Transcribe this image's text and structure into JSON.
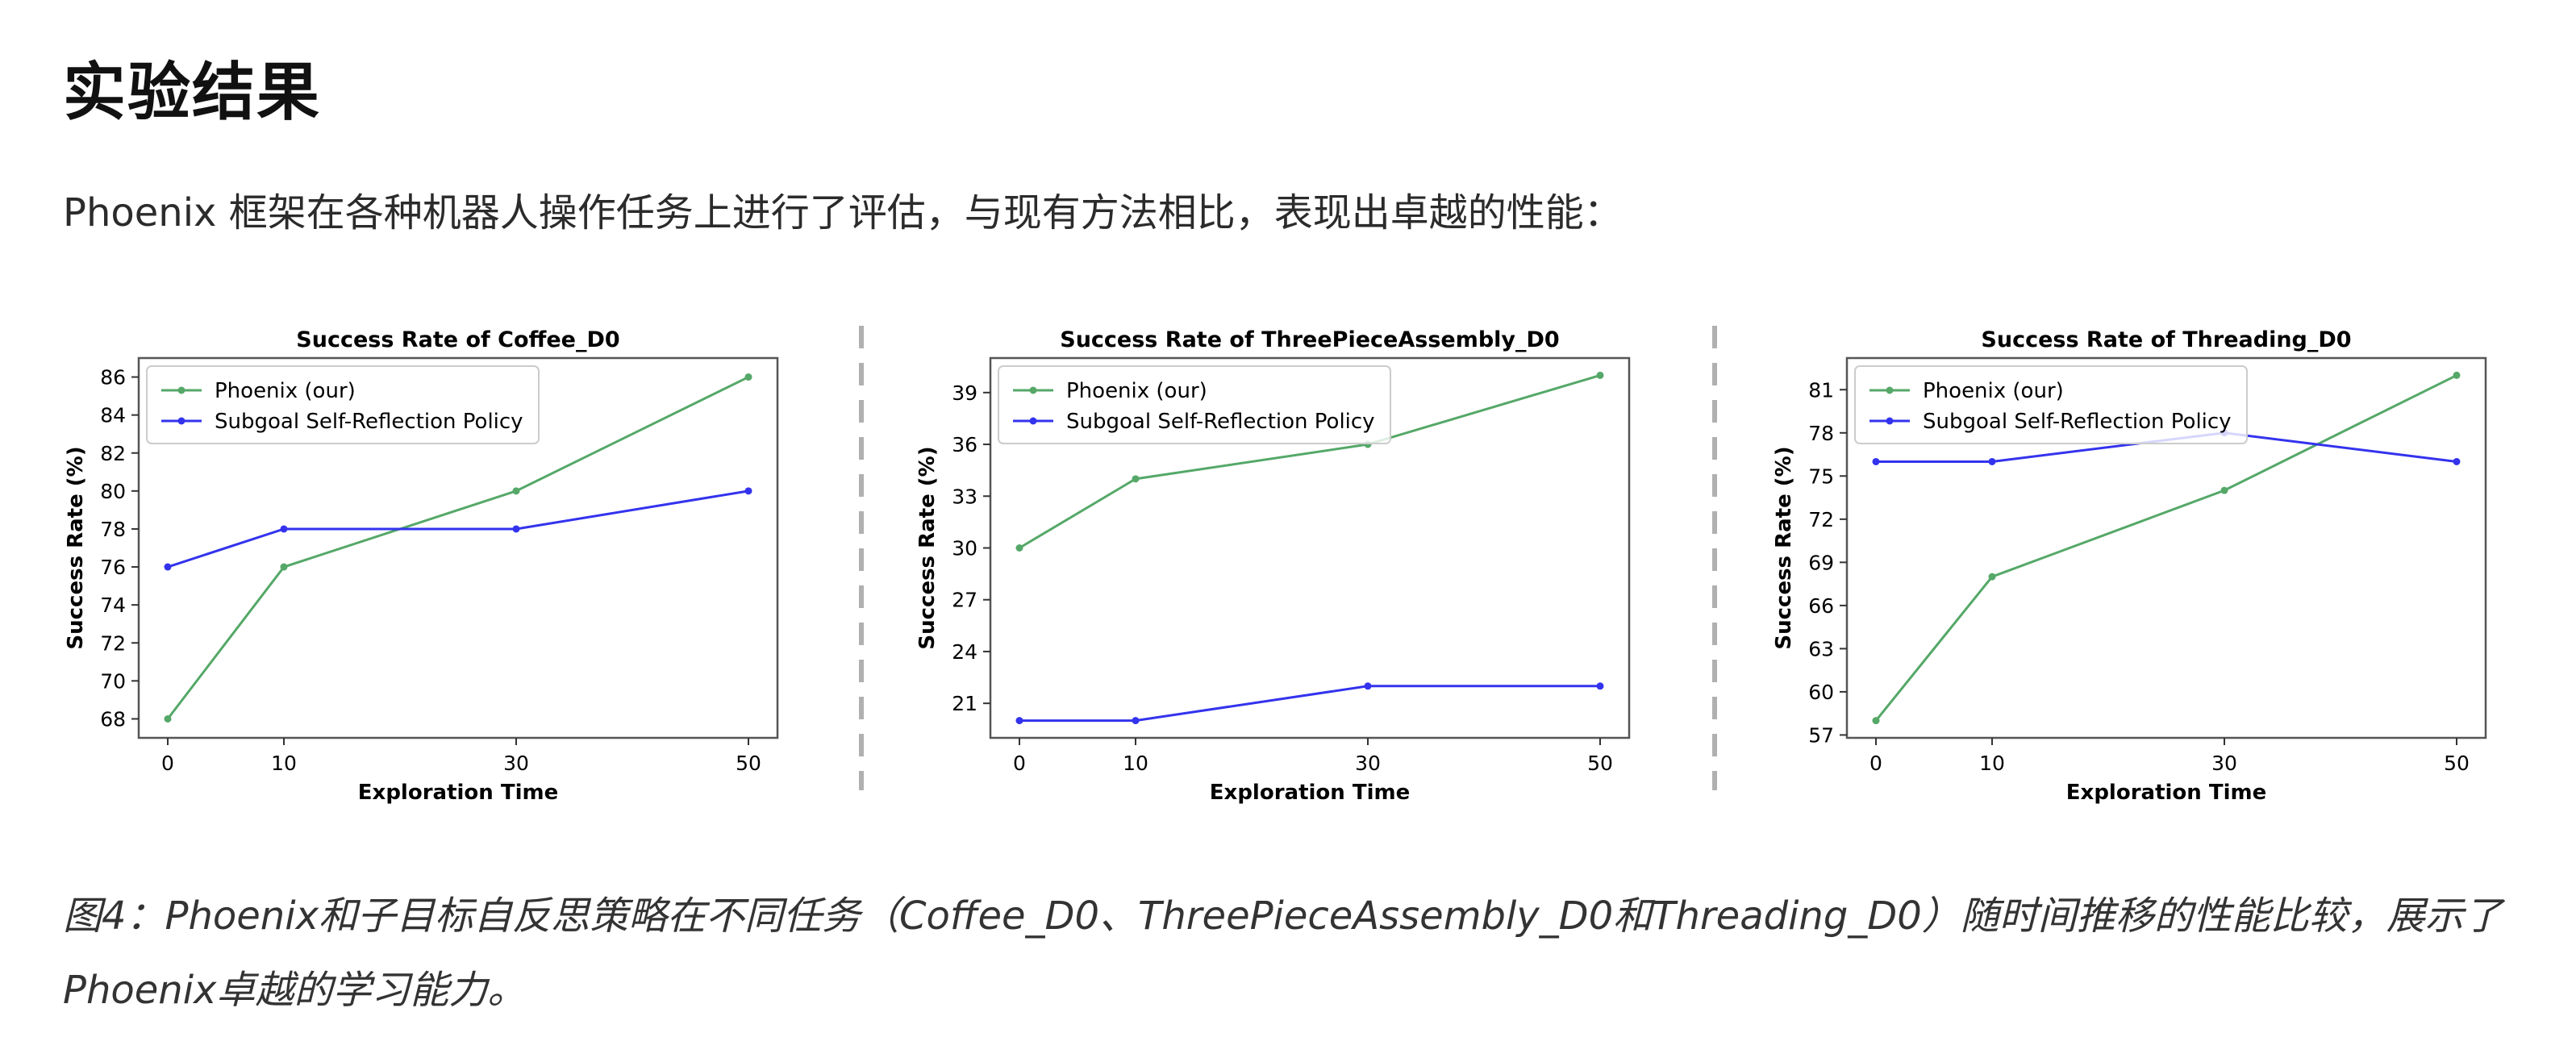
{
  "page": {
    "heading": "实验结果",
    "intro": "Phoenix 框架在各种机器人操作任务上进行了评估，与现有方法相比，表现出卓越的性能：",
    "caption": "图4：Phoenix和子目标自反思策略在不同任务（Coffee_D0、ThreePieceAssembly_D0和Threading_D0）随时间推移的性能比较，展示了Phoenix卓越的学习能力。"
  },
  "colors": {
    "phoenix": "#55a868",
    "subgoal": "#3333ee",
    "divider": "#b0b0b0"
  },
  "chart_data": [
    {
      "type": "line",
      "title": "Success Rate of Coffee_D0",
      "xlabel": "Exploration Time",
      "ylabel": "Success Rate (%)",
      "x": [
        0,
        10,
        30,
        50
      ],
      "xticks": [
        "0",
        "10",
        "30",
        "50"
      ],
      "ylim": [
        67,
        87
      ],
      "yticks": [
        68,
        70,
        72,
        74,
        76,
        78,
        80,
        82,
        84,
        86
      ],
      "legend_position": "upper-left",
      "grid": false,
      "series": [
        {
          "name": "Phoenix (our)",
          "values": [
            68,
            76,
            80,
            86
          ]
        },
        {
          "name": "Subgoal Self-Reflection Policy",
          "values": [
            76,
            78,
            78,
            80
          ]
        }
      ]
    },
    {
      "type": "line",
      "title": "Success Rate of ThreePieceAssembly_D0",
      "xlabel": "Exploration Time",
      "ylabel": "Success Rate (%)",
      "x": [
        0,
        10,
        30,
        50
      ],
      "xticks": [
        "0",
        "10",
        "30",
        "50"
      ],
      "ylim": [
        19,
        41
      ],
      "yticks": [
        21,
        24,
        27,
        30,
        33,
        36,
        39
      ],
      "legend_position": "upper-left",
      "grid": false,
      "series": [
        {
          "name": "Phoenix (our)",
          "values": [
            30,
            34,
            36,
            40
          ]
        },
        {
          "name": "Subgoal Self-Reflection Policy",
          "values": [
            20,
            20,
            22,
            22
          ]
        }
      ]
    },
    {
      "type": "line",
      "title": "Success Rate of Threading_D0",
      "xlabel": "Exploration Time",
      "ylabel": "Success Rate (%)",
      "x": [
        0,
        10,
        30,
        50
      ],
      "xticks": [
        "0",
        "10",
        "30",
        "50"
      ],
      "ylim": [
        56.8,
        83.2
      ],
      "yticks": [
        57,
        60,
        63,
        66,
        69,
        72,
        75,
        78,
        81
      ],
      "legend_position": "upper-left",
      "grid": false,
      "series": [
        {
          "name": "Phoenix (our)",
          "values": [
            58,
            68,
            74,
            82
          ]
        },
        {
          "name": "Subgoal Self-Reflection Policy",
          "values": [
            76,
            76,
            78,
            76
          ]
        }
      ]
    }
  ]
}
